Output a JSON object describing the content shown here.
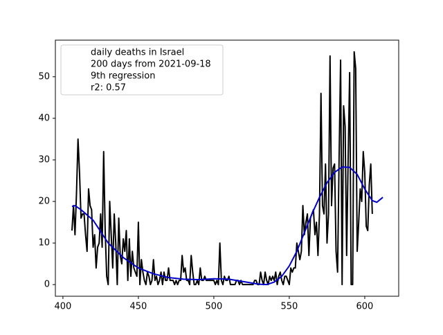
{
  "chart_data": {
    "type": "line",
    "legend": [
      "daily deaths in Israel",
      "200 days from 2021-09-18",
      "9th regression",
      "r2: 0.57"
    ],
    "legend_position": "upper left",
    "xlim": [
      395,
      622.5
    ],
    "xticks": [
      400,
      450,
      500,
      550,
      600
    ],
    "ylim": [
      -2.8,
      58.8
    ],
    "yticks": [
      0,
      10,
      20,
      30,
      40,
      50
    ],
    "series": [
      {
        "color": "#000000",
        "x": [
          406,
          407,
          408,
          409,
          410,
          411,
          412,
          413,
          414,
          415,
          416,
          417,
          418,
          419,
          420,
          421,
          422,
          423,
          424,
          425,
          426,
          427,
          428,
          429,
          430,
          431,
          432,
          433,
          434,
          435,
          436,
          437,
          438,
          439,
          440,
          441,
          442,
          443,
          444,
          445,
          446,
          447,
          448,
          449,
          450,
          451,
          452,
          453,
          454,
          455,
          456,
          457,
          458,
          459,
          460,
          461,
          462,
          463,
          464,
          465,
          466,
          467,
          468,
          469,
          470,
          471,
          472,
          473,
          474,
          475,
          476,
          477,
          478,
          479,
          480,
          481,
          482,
          483,
          484,
          485,
          486,
          487,
          488,
          489,
          490,
          491,
          492,
          493,
          494,
          495,
          496,
          497,
          498,
          499,
          500,
          501,
          502,
          503,
          504,
          505,
          506,
          507,
          508,
          509,
          510,
          511,
          512,
          513,
          514,
          515,
          516,
          517,
          518,
          519,
          520,
          521,
          522,
          523,
          524,
          525,
          526,
          527,
          528,
          529,
          530,
          531,
          532,
          533,
          534,
          535,
          536,
          537,
          538,
          539,
          540,
          541,
          542,
          543,
          544,
          545,
          546,
          547,
          548,
          549,
          550,
          551,
          552,
          553,
          554,
          555,
          556,
          557,
          558,
          559,
          560,
          561,
          562,
          563,
          564,
          565,
          566,
          567,
          568,
          569,
          570,
          571,
          572,
          573,
          574,
          575,
          576,
          577,
          578,
          579,
          580,
          581,
          582,
          583,
          584,
          585,
          586,
          587,
          588,
          589,
          590,
          591,
          592,
          593,
          594,
          595,
          596,
          597,
          598,
          599,
          600,
          601,
          602,
          603,
          604,
          605
        ],
        "values": [
          13,
          19,
          12,
          22,
          35,
          27,
          16,
          17,
          17,
          12,
          8,
          23,
          19,
          18,
          9,
          12,
          4,
          9,
          10,
          17,
          9,
          32,
          13,
          2,
          0,
          20,
          12,
          4,
          17,
          10,
          0,
          16,
          7,
          5,
          11,
          8,
          13,
          1,
          11,
          2,
          8,
          4,
          3,
          2,
          15,
          0,
          6,
          3,
          1,
          0,
          3,
          2,
          0,
          1,
          6,
          1,
          2,
          0,
          1,
          3,
          0,
          3,
          1,
          1,
          4,
          1,
          1,
          1,
          0,
          1,
          0,
          1,
          1,
          7,
          3,
          4,
          1,
          1,
          0,
          7,
          3,
          0,
          0,
          1,
          0,
          4,
          1,
          1,
          2,
          1,
          1,
          1,
          1,
          1,
          1,
          0,
          1,
          0,
          10,
          1,
          0,
          2,
          1,
          1,
          2,
          0,
          0,
          0,
          0,
          1,
          1,
          0,
          1,
          0,
          0,
          0,
          0,
          0,
          0,
          0,
          0,
          1,
          1,
          0,
          0,
          3,
          1,
          0,
          3,
          1,
          0,
          2,
          1,
          2,
          1,
          3,
          0,
          2,
          3,
          1,
          0,
          2,
          2,
          1,
          0,
          4,
          3,
          4,
          4,
          10,
          8,
          6,
          8,
          19,
          12,
          15,
          17,
          7,
          16,
          17,
          18,
          12,
          15,
          7,
          17,
          46,
          19,
          17,
          29,
          10,
          17,
          55,
          19,
          28,
          29,
          8,
          3,
          30,
          54,
          0,
          43,
          38,
          7,
          30,
          51,
          0,
          0,
          56,
          52,
          8,
          15,
          23,
          20,
          32,
          27,
          14,
          13,
          24,
          29,
          17
        ]
      },
      {
        "color": "#0000cc",
        "x": [
          406,
          408,
          412,
          420,
          430,
          440,
          450,
          460,
          470,
          480,
          490,
          500,
          510,
          520,
          530,
          535,
          540,
          545,
          550,
          555,
          560,
          565,
          570,
          575,
          580,
          585,
          590,
          595,
          600,
          605,
          608,
          612
        ],
        "values": [
          18.8,
          19,
          18,
          15.5,
          10,
          6.5,
          4,
          2.6,
          1.7,
          1.3,
          1.2,
          1.4,
          1.3,
          0.7,
          0.1,
          0,
          0.6,
          2,
          4.5,
          8,
          12.5,
          17,
          21,
          24.5,
          27,
          28.3,
          28.2,
          26.5,
          23,
          20.2,
          19.8,
          21
        ]
      }
    ]
  }
}
